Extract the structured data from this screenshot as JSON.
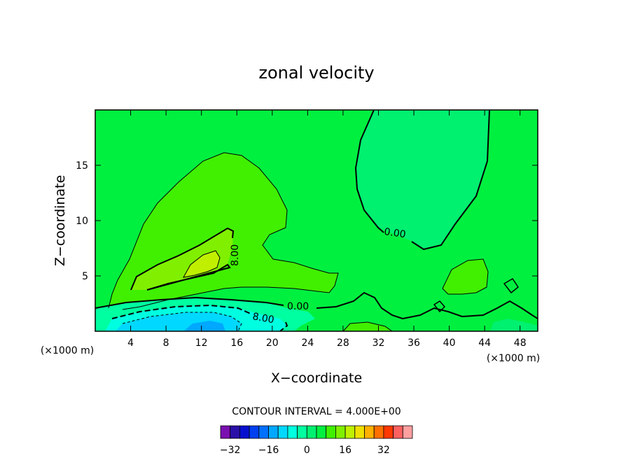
{
  "chart_data": {
    "type": "heatmap",
    "title": "zonal velocity",
    "xlabel": "X−coordinate",
    "ylabel": "Z−coordinate",
    "x_unit_note": "(×1000 m)",
    "x_unit_note_right": "(×1000 m)",
    "xlim": [
      0,
      50
    ],
    "ylim": [
      0,
      20
    ],
    "x_ticks": [
      4,
      8,
      12,
      16,
      20,
      24,
      28,
      32,
      36,
      40,
      44,
      48
    ],
    "y_ticks": [
      5,
      10,
      15
    ],
    "contour_interval_text": "CONTOUR INTERVAL = 4.000E+00",
    "contour_labels": [
      "8.00",
      "0.00",
      "0.00",
      "8.00"
    ],
    "colorbar": {
      "tick_values": [
        -32,
        -16,
        0,
        16,
        32
      ],
      "tick_labels": [
        "−32",
        "−16",
        "0",
        "16",
        "32"
      ],
      "levels": [
        -36,
        -32,
        -28,
        -24,
        -20,
        -16,
        -12,
        -8,
        -4,
        0,
        4,
        8,
        12,
        16,
        20,
        24,
        28,
        32,
        36,
        40
      ],
      "colors": [
        "#7a10b0",
        "#2a10a8",
        "#0810d0",
        "#0040f0",
        "#0070ff",
        "#00a8ff",
        "#00d8ff",
        "#00ffe0",
        "#00ffa0",
        "#00f070",
        "#00f040",
        "#40f000",
        "#80f000",
        "#c0f000",
        "#f0e000",
        "#ffb000",
        "#ff7000",
        "#ff3800",
        "#ff6060",
        "#ffa0a0"
      ]
    },
    "background_color": "#00f040",
    "regions": {
      "upper_right_negative_lobe": "#00f070",
      "positive_bump": "#40f000",
      "positive_core": "#80f000",
      "positive_max": "#c0f000",
      "near_surface_band_1": "#00ffa0",
      "near_surface_band_2": "#00ffe0",
      "near_surface_band_3": "#00d8ff",
      "near_surface_min": "#00a8ff"
    }
  }
}
